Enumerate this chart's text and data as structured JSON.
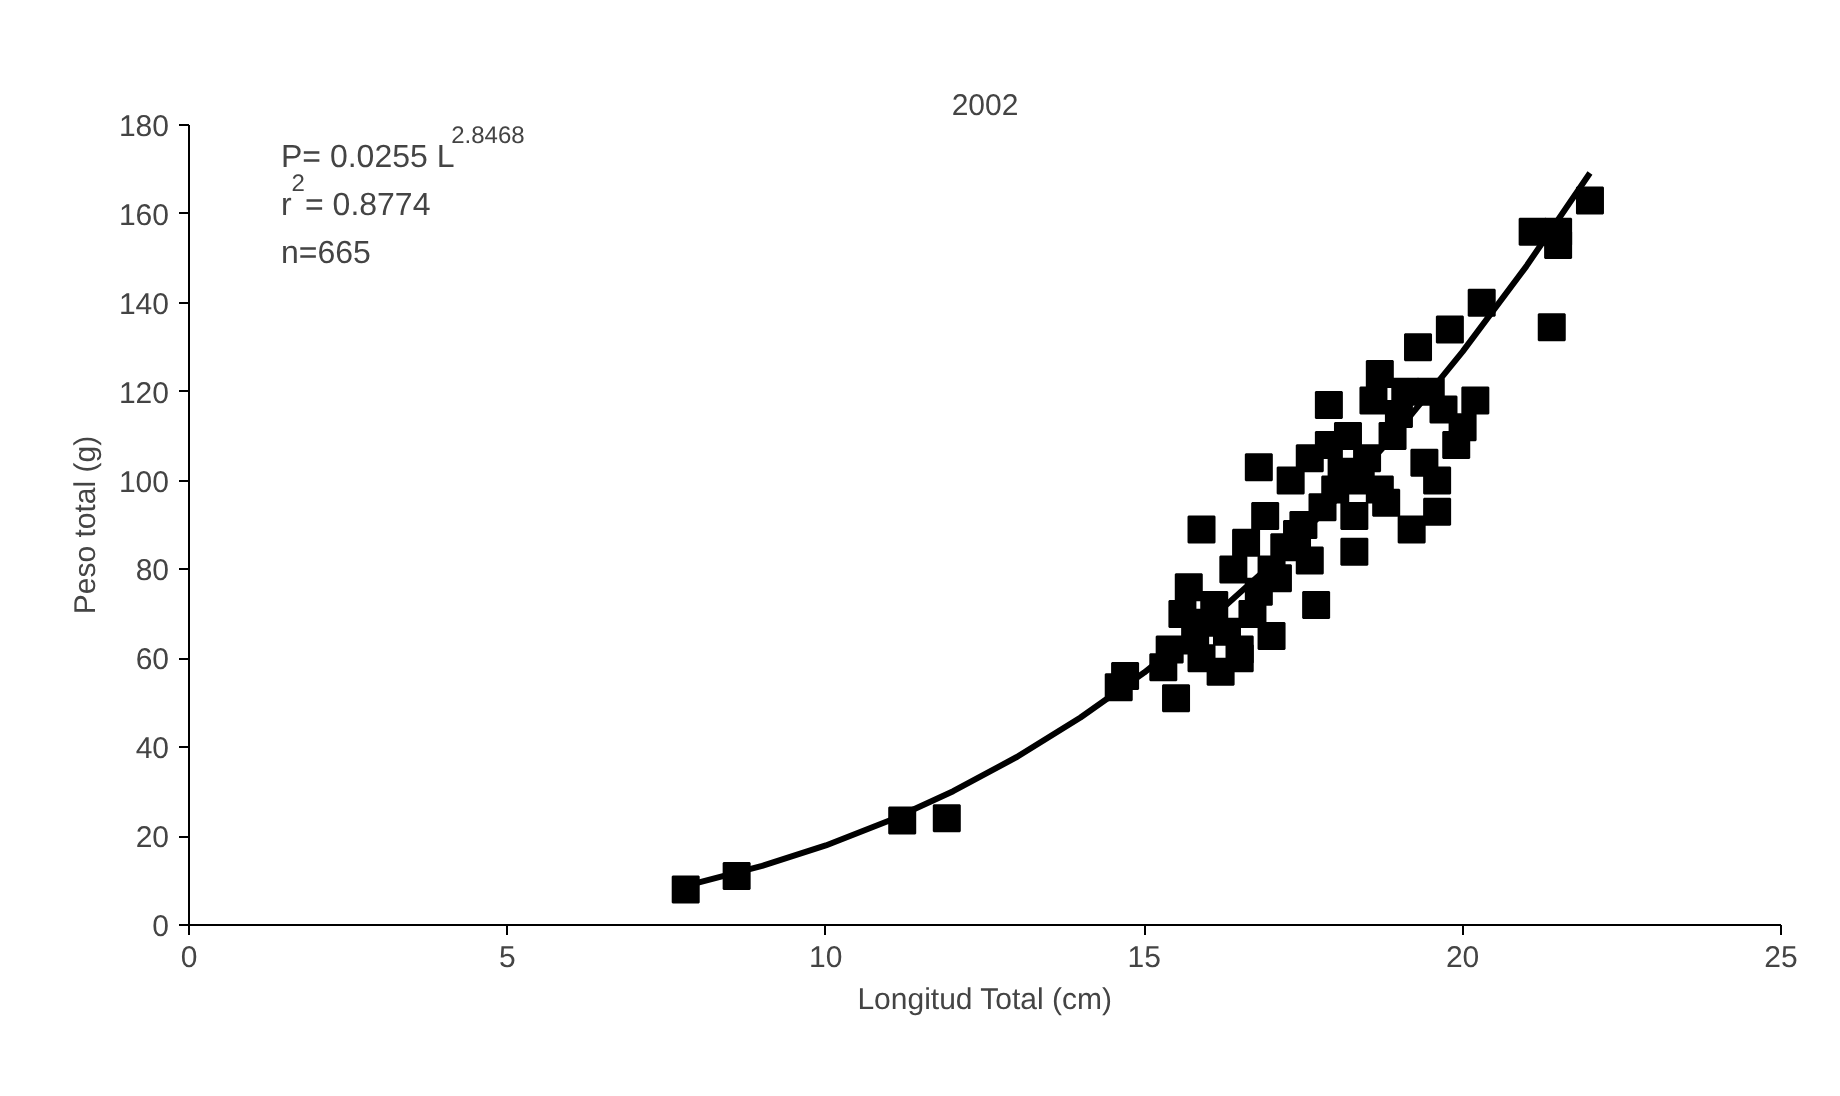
{
  "chart_data": {
    "type": "scatter",
    "title": "2002",
    "xlabel": "Longitud Total (cm)",
    "ylabel": "Peso total (g)",
    "xlim": [
      0,
      25
    ],
    "xticks": [
      0,
      5,
      10,
      15,
      20,
      25
    ],
    "ylim": [
      0,
      180
    ],
    "yticks": [
      0,
      20,
      40,
      60,
      80,
      100,
      120,
      140,
      160,
      180
    ],
    "grid": false,
    "marker": "square",
    "annotations": [
      "P= 0.0255 L$^{2.8468}$",
      "r$^{2}$ = 0.8774",
      "n=665"
    ],
    "series": [
      {
        "color": "#000000",
        "x": [
          7.8,
          8.6,
          11.2,
          11.9,
          14.6,
          14.7,
          15.3,
          15.5,
          15.4,
          21.1,
          21.5,
          21.5,
          21.4,
          22.0,
          20.3,
          20.2,
          19.9,
          19.6,
          19.6,
          16.8,
          15.9,
          17.9,
          19.3,
          19.8,
          18.7,
          19.2,
          18.3,
          17.7,
          17.0,
          16.2,
          16.5,
          15.7,
          16.4,
          18.0,
          17.5,
          17.0,
          18.5,
          19.0,
          16.0,
          16.8,
          17.3,
          18.2,
          18.8,
          17.2,
          16.6,
          15.9,
          19.5,
          18.6,
          17.6,
          16.1,
          16.3,
          16.7,
          17.1,
          17.4,
          17.8,
          18.1,
          18.4,
          18.9,
          19.1,
          19.4,
          15.6,
          15.8,
          16.9,
          17.6,
          18.3,
          19.7,
          20.0,
          17.9,
          16.5,
          18.7
        ],
        "values": [
          8,
          11,
          23.5,
          24,
          53.5,
          56,
          58,
          51,
          62,
          156,
          156,
          153,
          134.5,
          163,
          140,
          118,
          108,
          93,
          100,
          103,
          89,
          117,
          130,
          134,
          124,
          89,
          84,
          72,
          65,
          57,
          60,
          76,
          80,
          98,
          90,
          80,
          105,
          115,
          68,
          75,
          100,
          110,
          95,
          85,
          86,
          60,
          120,
          118,
          105,
          72,
          66,
          70,
          78,
          88,
          94,
          102,
          100,
          110,
          120,
          104,
          70,
          64,
          92,
          82,
          92,
          116,
          112,
          108,
          62,
          98
        ]
      },
      {
        "type": "line",
        "color": "#000000",
        "marker": "none",
        "x": [
          7.8,
          9,
          10,
          11,
          12,
          13,
          14,
          15,
          16,
          17,
          18,
          19,
          20,
          21,
          22
        ],
        "values": [
          8.8,
          13.3,
          17.9,
          23.5,
          30.1,
          37.8,
          46.7,
          56.8,
          68.3,
          81.2,
          95.5,
          111.4,
          129.0,
          148.2,
          169.2
        ]
      }
    ]
  }
}
